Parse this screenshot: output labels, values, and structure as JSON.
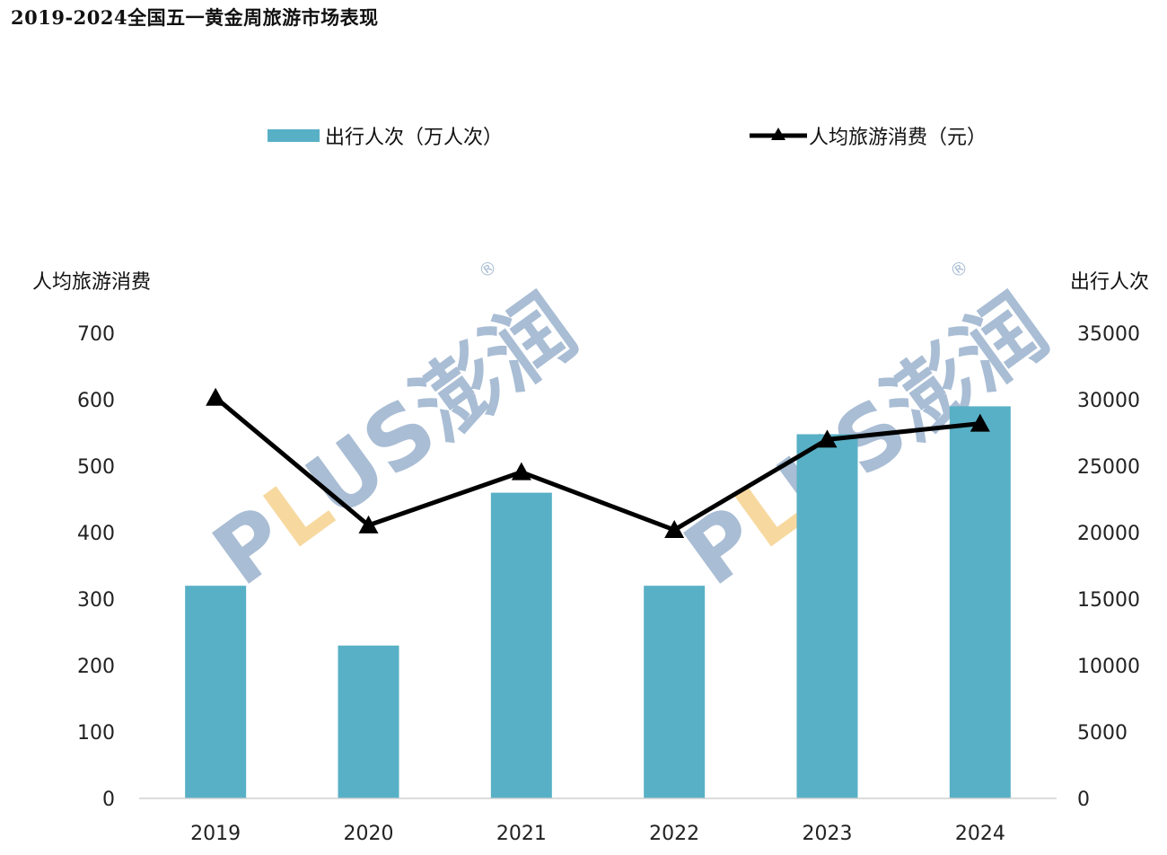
{
  "page": {
    "title": "2019-2024全国五一黄金周旅游市场表现"
  },
  "legend": {
    "bar_label": "出行人次（万人次）",
    "line_label": "人均旅游消费（元）"
  },
  "watermark": {
    "text": "PLUS澎润",
    "mark": "®"
  },
  "chart_data": {
    "type": "bar",
    "title": "2019-2024全国五一黄金周旅游市场表现",
    "categories": [
      "2019",
      "2020",
      "2021",
      "2022",
      "2023",
      "2024"
    ],
    "series": [
      {
        "name": "出行人次（万人次）",
        "type": "bar",
        "axis": "right",
        "color": "#58b0c6",
        "values": [
          16000,
          11500,
          23000,
          16000,
          27400,
          29500
        ]
      },
      {
        "name": "人均旅游消费（元）",
        "type": "line",
        "axis": "left",
        "color": "#000000",
        "marker": "triangle",
        "values": [
          603,
          411,
          491,
          404,
          540,
          564
        ]
      }
    ],
    "y_left": {
      "label": "人均旅游消费",
      "ylim": [
        0,
        700
      ],
      "ticks": [
        "0",
        "100",
        "200",
        "300",
        "400",
        "500",
        "600",
        "700"
      ]
    },
    "y_right": {
      "label": "出行人次",
      "ylim": [
        0,
        35000
      ],
      "ticks": [
        "0",
        "5000",
        "10000",
        "15000",
        "20000",
        "25000",
        "30000",
        "35000"
      ]
    },
    "grid": false,
    "legend_position": "top"
  }
}
